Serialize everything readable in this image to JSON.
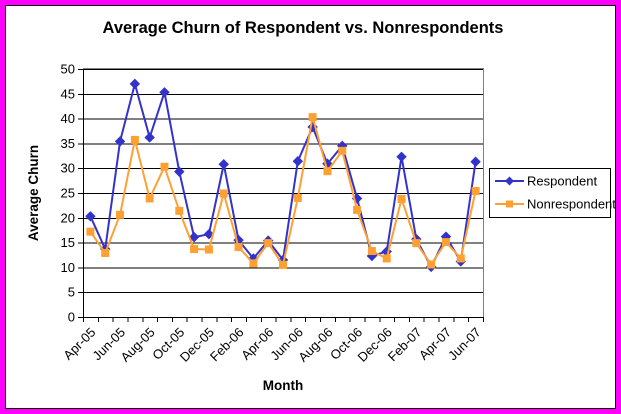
{
  "window": {
    "frame_color": "#FF00FF",
    "background_color": "#FFFFFF",
    "plot_border_color": "#808080",
    "gridline_color": "#000000",
    "text_color": "#000000"
  },
  "chart_data": {
    "type": "line",
    "title": "Average Churn of Respondent vs. Nonrespondents",
    "xlabel": "Month",
    "ylabel": "Average Churn",
    "ylim": [
      0,
      50
    ],
    "ytick_interval": 5,
    "ytick_labels": [
      "0",
      "5",
      "10",
      "15",
      "20",
      "25",
      "30",
      "35",
      "40",
      "45",
      "50"
    ],
    "grid": true,
    "legend_position": "right",
    "categories": [
      "Apr-05",
      "May-05",
      "Jun-05",
      "Jul-05",
      "Aug-05",
      "Sep-05",
      "Oct-05",
      "Nov-05",
      "Dec-05",
      "Jan-06",
      "Feb-06",
      "Mar-06",
      "Apr-06",
      "May-06",
      "Jun-06",
      "Jul-06",
      "Aug-06",
      "Sep-06",
      "Oct-06",
      "Nov-06",
      "Dec-06",
      "Jan-07",
      "Feb-07",
      "Mar-07",
      "Apr-07",
      "May-07",
      "Jun-07"
    ],
    "x_tick_labels": [
      "Apr-05",
      "Jun-05",
      "Aug-05",
      "Oct-05",
      "Dec-05",
      "Feb-06",
      "Apr-06",
      "Jun-06",
      "Aug-06",
      "Oct-06",
      "Dec-06",
      "Feb-07",
      "Apr-07",
      "Jun-07"
    ],
    "x_label_every": 2,
    "series": [
      {
        "name": "Respondent",
        "color": "#3333CC",
        "marker": "diamond",
        "values": [
          20.3,
          13.7,
          35.4,
          47.0,
          36.2,
          45.3,
          29.3,
          16.1,
          16.7,
          30.8,
          15.5,
          11.8,
          15.4,
          11.5,
          31.4,
          38.3,
          30.9,
          34.5,
          23.9,
          12.3,
          13.2,
          32.3,
          15.7,
          10.1,
          16.2,
          11.2,
          31.3
        ]
      },
      {
        "name": "Nonrespondent",
        "color": "#FFA033",
        "marker": "square",
        "values": [
          17.2,
          12.9,
          20.6,
          35.7,
          23.9,
          30.3,
          21.4,
          13.7,
          13.6,
          24.9,
          14.1,
          10.8,
          14.9,
          10.5,
          24.0,
          40.3,
          29.4,
          33.5,
          21.6,
          13.3,
          11.8,
          23.8,
          14.9,
          10.6,
          15.1,
          11.8,
          25.4
        ]
      }
    ]
  }
}
